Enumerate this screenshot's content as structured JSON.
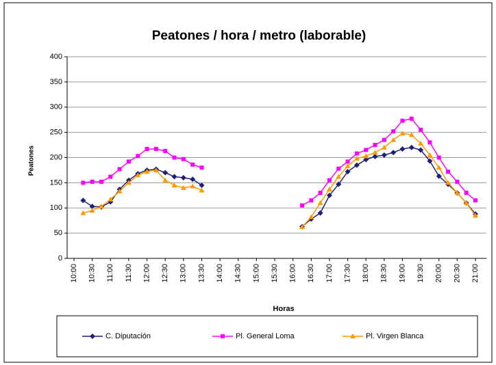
{
  "chart_data": {
    "type": "line",
    "title": "Peatones / hora / metro (laborable)",
    "x_label": "Horas",
    "y_label": "Peatones",
    "xlim": [
      10,
      21
    ],
    "xticks": [
      {
        "value": 10,
        "label": "10:00"
      },
      {
        "value": 10.5,
        "label": "10:30"
      },
      {
        "value": 11,
        "label": "11:00"
      },
      {
        "value": 11.5,
        "label": "11:30"
      },
      {
        "value": 12,
        "label": "12:00"
      },
      {
        "value": 12.5,
        "label": "12:30"
      },
      {
        "value": 13,
        "label": "13:00"
      },
      {
        "value": 13.5,
        "label": "13:30"
      },
      {
        "value": 14,
        "label": "14:00"
      },
      {
        "value": 14.5,
        "label": "14:30"
      },
      {
        "value": 15,
        "label": "15:00"
      },
      {
        "value": 15.5,
        "label": "15:30"
      },
      {
        "value": 16,
        "label": "16:00"
      },
      {
        "value": 16.5,
        "label": "16:30"
      },
      {
        "value": 17,
        "label": "17:00"
      },
      {
        "value": 17.5,
        "label": "17:30"
      },
      {
        "value": 18,
        "label": "18:00"
      },
      {
        "value": 18.5,
        "label": "18:30"
      },
      {
        "value": 19,
        "label": "19:00"
      },
      {
        "value": 19.5,
        "label": "19:30"
      },
      {
        "value": 20,
        "label": "20:00"
      },
      {
        "value": 20.5,
        "label": "20:30"
      },
      {
        "value": 21,
        "label": "21:00"
      }
    ],
    "ylim": [
      0,
      400
    ],
    "yticks": [
      0,
      50,
      100,
      150,
      200,
      250,
      300,
      350,
      400
    ],
    "grid": true,
    "legend": "bottom",
    "x": [
      10.25,
      10.5,
      10.75,
      11,
      11.25,
      11.5,
      11.75,
      12,
      12.25,
      12.5,
      12.75,
      13,
      13.25,
      13.5,
      13.75,
      14,
      14.25,
      14.5,
      14.75,
      15,
      15.25,
      15.5,
      15.75,
      16,
      16.25,
      16.5,
      16.75,
      17,
      17.25,
      17.5,
      17.75,
      18,
      18.25,
      18.5,
      18.75,
      19,
      19.25,
      19.5,
      19.75,
      20,
      20.25,
      20.5,
      20.75,
      21
    ],
    "series": [
      {
        "name": "C. Diputación",
        "color": "#1f1f7a",
        "marker": "diamond",
        "values": [
          115,
          103,
          102,
          112,
          137,
          155,
          168,
          175,
          177,
          170,
          162,
          160,
          157,
          145,
          null,
          null,
          null,
          null,
          null,
          null,
          null,
          null,
          null,
          null,
          63,
          78,
          90,
          125,
          147,
          172,
          185,
          196,
          202,
          205,
          210,
          217,
          220,
          215,
          193,
          163,
          147,
          130,
          110,
          88
        ]
      },
      {
        "name": "Pl. General Loma",
        "color": "#ff00ff",
        "marker": "square",
        "values": [
          150,
          152,
          152,
          162,
          177,
          192,
          203,
          217,
          217,
          213,
          200,
          197,
          186,
          180,
          null,
          null,
          null,
          null,
          null,
          null,
          null,
          null,
          null,
          null,
          105,
          115,
          130,
          155,
          178,
          192,
          208,
          215,
          225,
          235,
          252,
          273,
          277,
          255,
          230,
          200,
          172,
          152,
          130,
          115
        ]
      },
      {
        "name": "Pl. Virgen Blanca",
        "color": "#ff9900",
        "marker": "triangle",
        "values": [
          90,
          95,
          103,
          117,
          133,
          150,
          165,
          172,
          175,
          155,
          145,
          140,
          143,
          135,
          null,
          null,
          null,
          null,
          null,
          null,
          null,
          null,
          null,
          null,
          62,
          82,
          110,
          137,
          162,
          183,
          198,
          203,
          210,
          220,
          235,
          248,
          245,
          228,
          205,
          180,
          150,
          130,
          110,
          85
        ]
      }
    ]
  }
}
